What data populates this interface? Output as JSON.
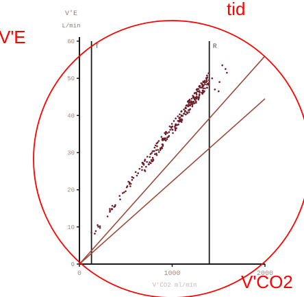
{
  "chart_data": {
    "type": "scatter",
    "title": "",
    "ylabel_line1": "V'E",
    "ylabel_line2": "L/min",
    "xlabel": "V'CO2 ml/min",
    "xlim": [
      0,
      2000
    ],
    "ylim": [
      0,
      60
    ],
    "x_ticks": [
      "0",
      "1000",
      "2000"
    ],
    "y_ticks": [
      "0",
      "10",
      "20",
      "30",
      "40",
      "50",
      "60"
    ],
    "vlines": [
      {
        "label": "T",
        "x": 130
      },
      {
        "label": "R",
        "x": 1400
      }
    ],
    "ref_lines": [
      {
        "x": [
          0,
          2000
        ],
        "y": [
          0,
          56
        ]
      },
      {
        "x": [
          0,
          2000
        ],
        "y": [
          0,
          44.5
        ]
      }
    ],
    "grid": false,
    "colors": {
      "axis": "#1a1a1a",
      "points": "#6b1e2a",
      "ref_lines": "#9a4a3a",
      "tick_text": "#9a8a86",
      "overlay": "#ff0000"
    }
  },
  "overlay": {
    "label_ve": "V'E",
    "label_tid": "tid",
    "label_vco2": "V'CO2"
  }
}
